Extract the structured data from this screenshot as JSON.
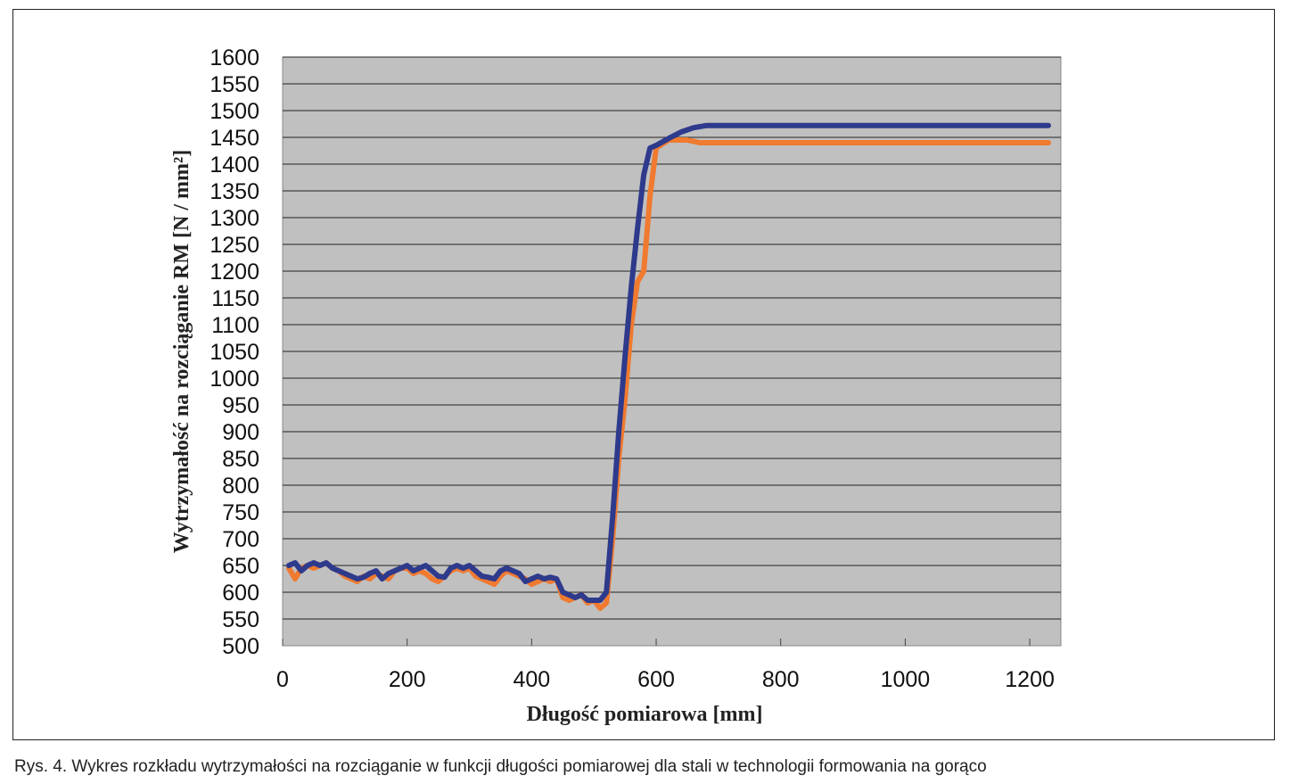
{
  "caption": "Rys. 4. Wykres rozkładu wytrzymałości na rozciąganie w funkcji długości pomiarowej dla stali w technologii formowania na gorąco",
  "chart_data": {
    "type": "line",
    "xlabel": "Długość pomiarowa [mm]",
    "ylabel": "Wytrzymałość na rozciąganie RM [N / mm²]",
    "xlim": [
      0,
      1250
    ],
    "ylim": [
      500,
      1600
    ],
    "xticks": [
      0,
      200,
      400,
      600,
      800,
      1000,
      1200
    ],
    "yticks": [
      500,
      550,
      600,
      650,
      700,
      750,
      800,
      850,
      900,
      950,
      1000,
      1050,
      1100,
      1150,
      1200,
      1250,
      1300,
      1350,
      1400,
      1450,
      1500,
      1550,
      1600
    ],
    "plot_background": "#c0c0c0",
    "gridlines": "horizontal",
    "legend": "none",
    "series": [
      {
        "color": "#f07a30",
        "x": [
          10,
          20,
          30,
          40,
          50,
          60,
          70,
          80,
          90,
          100,
          110,
          120,
          130,
          140,
          150,
          160,
          170,
          180,
          190,
          200,
          210,
          220,
          230,
          240,
          250,
          260,
          270,
          280,
          290,
          300,
          310,
          320,
          330,
          340,
          350,
          360,
          370,
          380,
          390,
          400,
          410,
          420,
          430,
          440,
          450,
          460,
          470,
          480,
          490,
          500,
          510,
          520,
          530,
          540,
          550,
          560,
          570,
          580,
          590,
          600,
          620,
          650,
          670,
          700,
          800,
          900,
          1000,
          1100,
          1230
        ],
        "y": [
          645,
          625,
          645,
          650,
          645,
          650,
          655,
          645,
          640,
          630,
          625,
          620,
          630,
          625,
          635,
          630,
          625,
          640,
          645,
          645,
          635,
          640,
          635,
          625,
          620,
          630,
          640,
          645,
          640,
          645,
          630,
          625,
          620,
          615,
          630,
          640,
          635,
          630,
          625,
          615,
          620,
          625,
          620,
          625,
          590,
          585,
          590,
          595,
          580,
          585,
          570,
          580,
          700,
          850,
          960,
          1100,
          1180,
          1200,
          1340,
          1430,
          1445,
          1445,
          1440,
          1440,
          1440,
          1440,
          1440,
          1440,
          1440
        ]
      },
      {
        "color": "#2e3a8c",
        "x": [
          10,
          20,
          30,
          40,
          50,
          60,
          70,
          80,
          90,
          100,
          110,
          120,
          130,
          140,
          150,
          160,
          170,
          180,
          190,
          200,
          210,
          220,
          230,
          240,
          250,
          260,
          270,
          280,
          290,
          300,
          310,
          320,
          330,
          340,
          350,
          360,
          370,
          380,
          390,
          400,
          410,
          420,
          430,
          440,
          450,
          460,
          470,
          480,
          490,
          500,
          510,
          520,
          530,
          540,
          550,
          560,
          570,
          580,
          590,
          600,
          620,
          640,
          660,
          680,
          700,
          800,
          900,
          1000,
          1100,
          1230
        ],
        "y": [
          650,
          655,
          640,
          650,
          655,
          650,
          655,
          645,
          640,
          635,
          630,
          625,
          628,
          635,
          640,
          625,
          635,
          640,
          645,
          650,
          640,
          645,
          650,
          640,
          630,
          628,
          645,
          650,
          645,
          650,
          640,
          630,
          628,
          625,
          640,
          645,
          640,
          635,
          620,
          625,
          630,
          625,
          628,
          625,
          600,
          595,
          590,
          595,
          585,
          585,
          585,
          600,
          740,
          900,
          1040,
          1170,
          1280,
          1380,
          1430,
          1435,
          1448,
          1460,
          1468,
          1472,
          1472,
          1472,
          1472,
          1472,
          1472,
          1472
        ]
      }
    ]
  }
}
